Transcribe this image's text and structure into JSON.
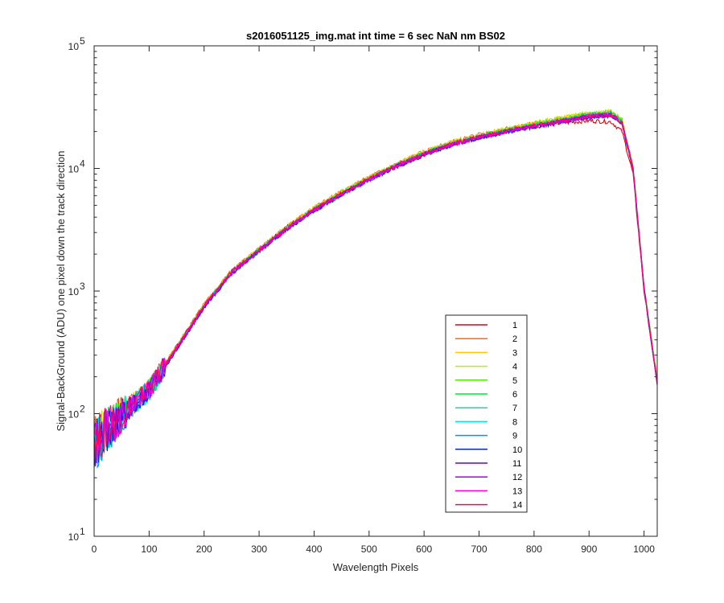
{
  "chart_data": {
    "type": "line",
    "title": "s2016051125_img.mat int time = 6 sec  NaN nm BS02",
    "xlabel": "Wavelength Pixels",
    "ylabel": "Signal-BackGround (ADU) one pixel down the track direction",
    "xlim": [
      0,
      1024
    ],
    "ylim": [
      10,
      100000
    ],
    "yscale": "log",
    "x_ticks": [
      0,
      100,
      200,
      300,
      400,
      500,
      600,
      700,
      800,
      900,
      1000
    ],
    "x_tick_labels": [
      "0",
      "100",
      "200",
      "300",
      "400",
      "500",
      "600",
      "700",
      "800",
      "900",
      "1000"
    ],
    "y_ticks": [
      10,
      100,
      1000,
      10000,
      100000
    ],
    "y_tick_labels": [
      {
        "base": "10",
        "exp": "1"
      },
      {
        "base": "10",
        "exp": "2"
      },
      {
        "base": "10",
        "exp": "3"
      },
      {
        "base": "10",
        "exp": "4"
      },
      {
        "base": "10",
        "exp": "5"
      }
    ],
    "legend_position": "lower-right",
    "x": [
      0,
      50,
      100,
      150,
      200,
      250,
      300,
      350,
      400,
      450,
      500,
      550,
      600,
      650,
      700,
      750,
      800,
      850,
      900,
      940,
      960,
      980,
      1000,
      1024
    ],
    "series": [
      {
        "name": "1",
        "color": "#e8000b",
        "values": [
          62,
          100,
          160,
          350,
          770,
          1450,
          2200,
          3300,
          4700,
          6300,
          8300,
          10600,
          13300,
          15800,
          18000,
          20000,
          22000,
          23500,
          24500,
          24000,
          20000,
          9000,
          1000,
          180
        ]
      },
      {
        "name": "2",
        "color": "#ff6a00",
        "values": [
          62,
          101,
          162,
          355,
          780,
          1470,
          2230,
          3350,
          4800,
          6450,
          8500,
          10900,
          13700,
          16400,
          18800,
          21000,
          23300,
          25500,
          27200,
          28000,
          23500,
          10000,
          1050,
          190
        ]
      },
      {
        "name": "3",
        "color": "#ffc800",
        "values": [
          60,
          100,
          160,
          352,
          775,
          1460,
          2220,
          3340,
          4780,
          6430,
          8480,
          10880,
          13650,
          16350,
          18750,
          21000,
          23500,
          26000,
          28300,
          29000,
          25000,
          10500,
          1100,
          195
        ]
      },
      {
        "name": "4",
        "color": "#b6ef00",
        "values": [
          58,
          99,
          158,
          348,
          768,
          1450,
          2200,
          3310,
          4730,
          6370,
          8400,
          10780,
          13520,
          16200,
          18600,
          20800,
          23200,
          25700,
          28200,
          29200,
          25000,
          10500,
          1100,
          190
        ]
      },
      {
        "name": "5",
        "color": "#55e800",
        "values": [
          57,
          98,
          157,
          345,
          760,
          1440,
          2180,
          3280,
          4690,
          6310,
          8320,
          10680,
          13400,
          16050,
          18400,
          20600,
          22900,
          25300,
          27800,
          28800,
          24700,
          10300,
          1080,
          185
        ]
      },
      {
        "name": "6",
        "color": "#00e636",
        "values": [
          57,
          97,
          156,
          342,
          755,
          1430,
          2160,
          3250,
          4650,
          6250,
          8240,
          10580,
          13280,
          15900,
          18200,
          20400,
          22600,
          25000,
          27400,
          28400,
          24400,
          10200,
          1070,
          183
        ]
      },
      {
        "name": "7",
        "color": "#00e6a4",
        "values": [
          56,
          96,
          155,
          340,
          750,
          1420,
          2150,
          3230,
          4620,
          6210,
          8190,
          10510,
          13190,
          15790,
          18080,
          20250,
          22400,
          24750,
          27100,
          28000,
          24000,
          10100,
          1060,
          180
        ]
      },
      {
        "name": "8",
        "color": "#00e6e6",
        "values": [
          56,
          96,
          155,
          338,
          746,
          1410,
          2140,
          3210,
          4590,
          6170,
          8140,
          10450,
          13110,
          15690,
          17960,
          20100,
          22200,
          24500,
          26800,
          27600,
          23700,
          10000,
          1050,
          178
        ]
      },
      {
        "name": "9",
        "color": "#0096e6",
        "values": [
          55,
          95,
          154,
          336,
          742,
          1400,
          2130,
          3190,
          4560,
          6130,
          8090,
          10390,
          13030,
          15600,
          17850,
          19950,
          22000,
          24200,
          26500,
          27300,
          23400,
          9900,
          1040,
          176
        ]
      },
      {
        "name": "10",
        "color": "#0027e6",
        "values": [
          55,
          94,
          153,
          333,
          738,
          1390,
          2110,
          3170,
          4530,
          6090,
          8040,
          10320,
          12950,
          15500,
          17740,
          19800,
          21800,
          24000,
          26200,
          27000,
          23100,
          9800,
          1030,
          175
        ]
      },
      {
        "name": "11",
        "color": "#5a00e6",
        "values": [
          56,
          95,
          154,
          335,
          742,
          1400,
          2120,
          3180,
          4550,
          6110,
          8070,
          10360,
          13000,
          15560,
          17810,
          19880,
          21900,
          24100,
          26300,
          27100,
          23200,
          9850,
          1035,
          176
        ]
      },
      {
        "name": "12",
        "color": "#a600e6",
        "values": [
          57,
          96,
          155,
          338,
          748,
          1410,
          2135,
          3200,
          4580,
          6150,
          8120,
          10420,
          13080,
          15650,
          17920,
          20000,
          22050,
          24250,
          26450,
          27250,
          23350,
          9900,
          1040,
          177
        ]
      },
      {
        "name": "13",
        "color": "#ff00e6",
        "values": [
          58,
          97,
          157,
          342,
          755,
          1425,
          2155,
          3230,
          4620,
          6200,
          8180,
          10500,
          13170,
          15760,
          18040,
          20150,
          22200,
          24400,
          26600,
          27400,
          23500,
          9950,
          1045,
          178
        ]
      },
      {
        "name": "14",
        "color": "#ff0064",
        "values": [
          60,
          98,
          158,
          345,
          760,
          1435,
          2170,
          3250,
          4650,
          6240,
          8230,
          10560,
          13240,
          15850,
          18150,
          20250,
          22300,
          24500,
          26700,
          27500,
          23600,
          10000,
          1050,
          180
        ]
      }
    ]
  }
}
